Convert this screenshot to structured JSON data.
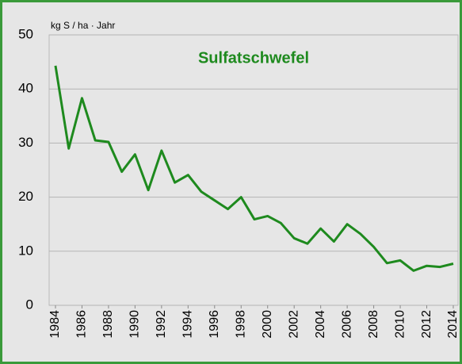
{
  "chart_data": {
    "type": "line",
    "title": "Sulfatschwefel",
    "y_label": "kg S / ha · Jahr",
    "x": [
      1984,
      1985,
      1986,
      1987,
      1988,
      1989,
      1990,
      1991,
      1992,
      1993,
      1994,
      1995,
      1996,
      1997,
      1998,
      1999,
      2000,
      2001,
      2002,
      2003,
      2004,
      2005,
      2006,
      2007,
      2008,
      2009,
      2010,
      2011,
      2012,
      2013,
      2014
    ],
    "series": [
      {
        "name": "Sulfatschwefel",
        "color": "#1e8a1e",
        "values": [
          44.3,
          29.0,
          38.3,
          30.5,
          30.2,
          24.7,
          27.9,
          21.3,
          28.6,
          22.7,
          24.1,
          21.0,
          19.4,
          17.8,
          20.0,
          15.9,
          16.5,
          15.2,
          12.4,
          11.4,
          14.2,
          11.8,
          15.0,
          13.2,
          10.8,
          7.8,
          8.3,
          6.4,
          7.3,
          7.1,
          7.7
        ]
      }
    ],
    "xlim": [
      1984,
      2014
    ],
    "xticks": [
      1984,
      1986,
      1988,
      1990,
      1992,
      1994,
      1996,
      1998,
      2000,
      2002,
      2004,
      2006,
      2008,
      2010,
      2012,
      2014
    ],
    "ylim": [
      0,
      50
    ],
    "yticks": [
      0,
      10,
      20,
      30,
      40,
      50
    ],
    "grid": true
  }
}
